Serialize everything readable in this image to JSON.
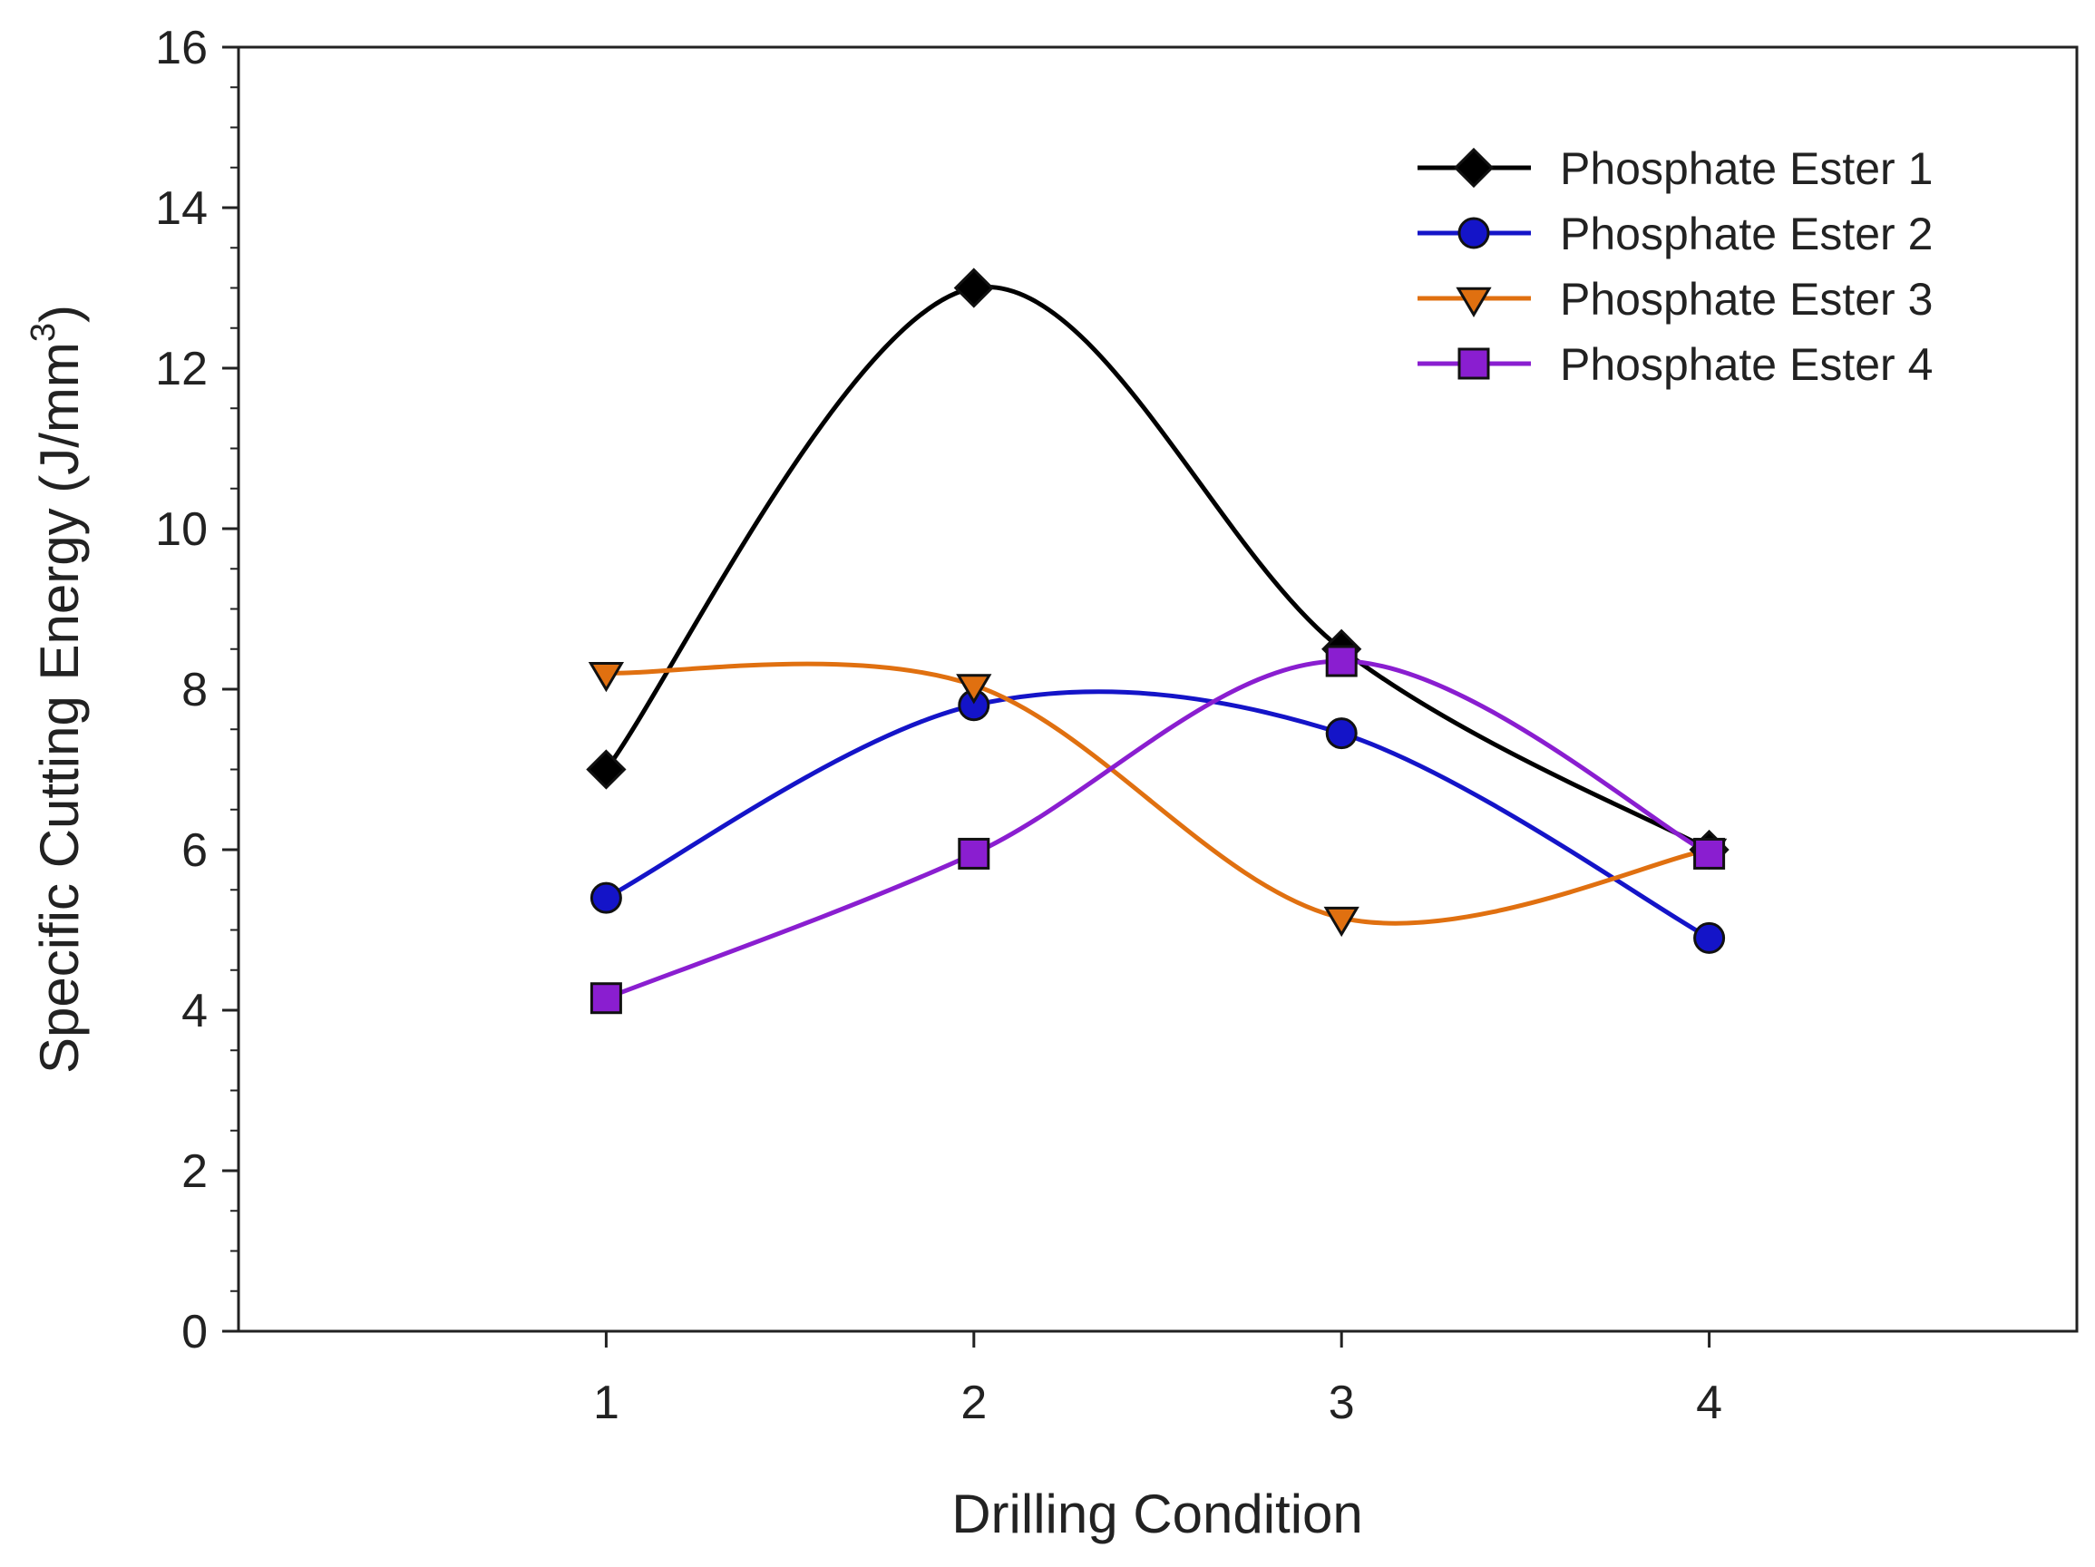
{
  "chart_data": {
    "type": "line",
    "title": "",
    "xlabel": "Drilling Condition",
    "ylabel": "Specific Cutting Energy (J/mm",
    "ylabel_superscript": "3",
    "ylabel_suffix": ")",
    "categories": [
      "1",
      "2",
      "3",
      "4"
    ],
    "x": [
      1,
      2,
      3,
      4
    ],
    "xlim": [
      0,
      5
    ],
    "ylim": [
      0,
      16
    ],
    "yticks": [
      "0",
      "2",
      "4",
      "6",
      "8",
      "10",
      "12",
      "14",
      "16"
    ],
    "grid": false,
    "legend_position": "top-right",
    "smoothed": true,
    "series": [
      {
        "name": "Phosphate Ester 1",
        "color": "#000000",
        "marker": "diamond",
        "values": [
          7.0,
          13.0,
          8.5,
          6.0
        ]
      },
      {
        "name": "Phosphate Ester 2",
        "color": "#1414c8",
        "marker": "circle",
        "values": [
          5.4,
          7.8,
          7.45,
          4.9
        ]
      },
      {
        "name": "Phosphate Ester 3",
        "color": "#e07010",
        "marker": "triangle-down",
        "values": [
          8.2,
          8.05,
          5.15,
          6.0
        ]
      },
      {
        "name": "Phosphate Ester 4",
        "color": "#8a1ed0",
        "marker": "square",
        "values": [
          4.15,
          5.95,
          8.35,
          5.95
        ]
      }
    ]
  }
}
